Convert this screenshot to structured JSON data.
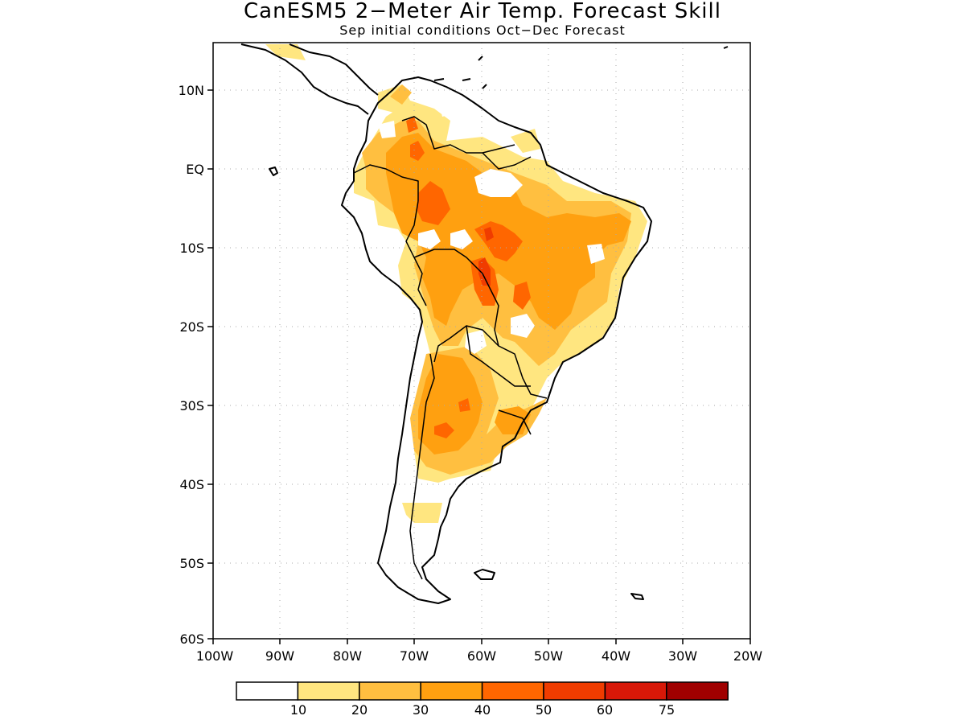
{
  "title": "CanESM5 2−Meter Air Temp. Forecast Skill",
  "subtitle": "Sep initial conditions  Oct−Dec Forecast",
  "map": {
    "lon_range": [
      -100,
      -20
    ],
    "lat_range": [
      -60,
      15
    ],
    "lat_ticks": [
      "10N",
      "EQ",
      "10S",
      "20S",
      "30S",
      "40S",
      "50S",
      "60S"
    ],
    "lon_ticks": [
      "100W",
      "90W",
      "80W",
      "70W",
      "60W",
      "50W",
      "40W",
      "30W",
      "20W"
    ],
    "grid": "dotted"
  },
  "colorbar": {
    "labels": [
      "10",
      "20",
      "30",
      "40",
      "50",
      "60",
      "75"
    ],
    "colors": [
      "#ffffff",
      "#ffe680",
      "#ffbf40",
      "#ffa010",
      "#ff6600",
      "#f03c00",
      "#d81808",
      "#a00000"
    ]
  }
}
